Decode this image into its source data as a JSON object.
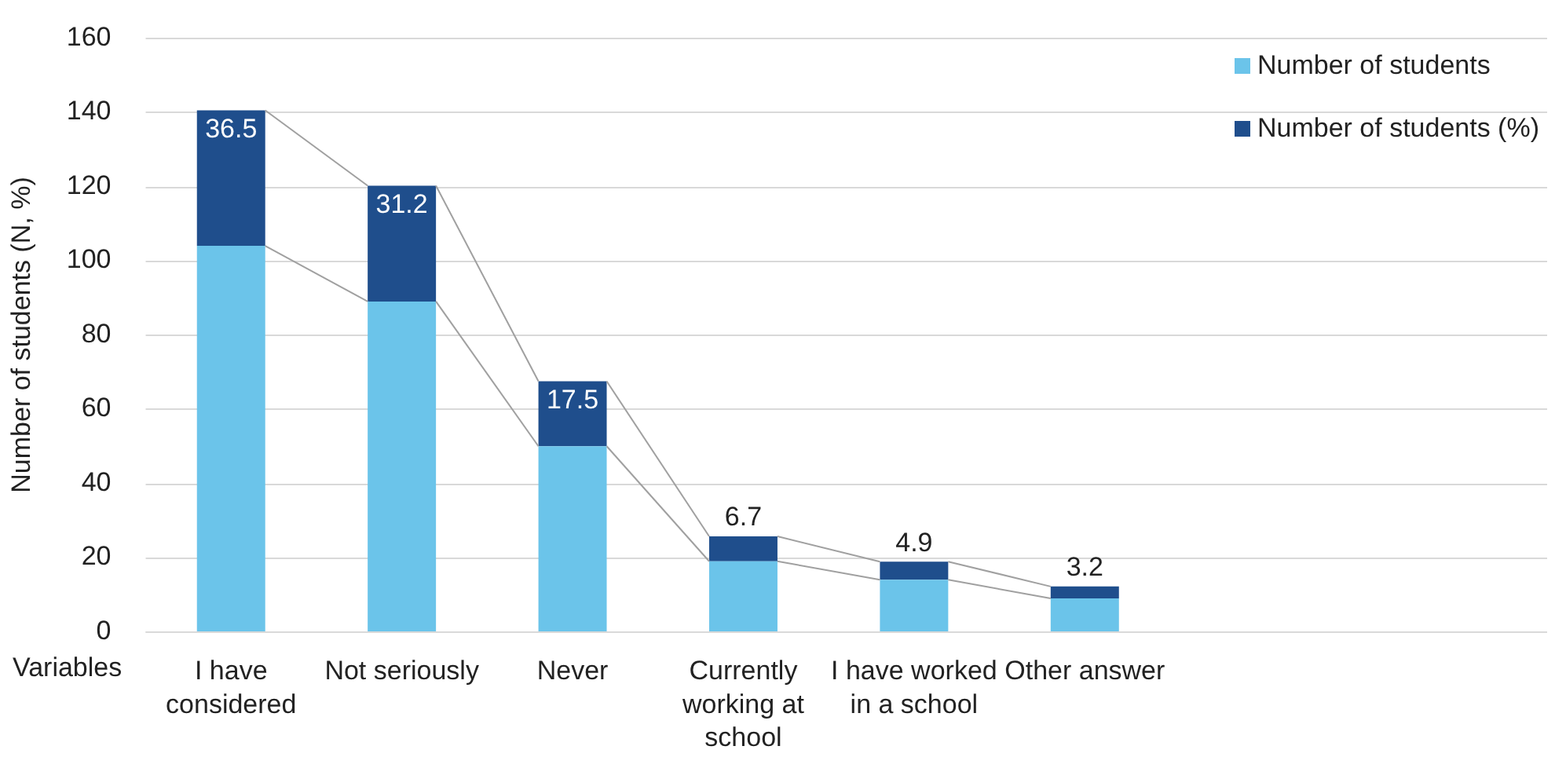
{
  "chart_data": {
    "type": "bar",
    "stacked": true,
    "xlabel": "Variables",
    "ylabel": "Number of students (N, %)",
    "categories": [
      "I have considered",
      "Not seriously",
      "Never",
      "Currently working at school",
      "I have worked in a school",
      "Other answer"
    ],
    "series": [
      {
        "name": "Number of students",
        "color": "#6bc4ea",
        "values": [
          104,
          89,
          50,
          19,
          14,
          9
        ]
      },
      {
        "name": "Number of students (%)",
        "color": "#1f4e8c",
        "values": [
          36.5,
          31.2,
          17.5,
          6.7,
          4.9,
          3.2
        ],
        "value_labels": [
          "36.5",
          "31.2",
          "17.5",
          "6.7",
          "4.9",
          "3.2"
        ]
      }
    ],
    "ylim": [
      0,
      160
    ],
    "yticks": [
      0,
      20,
      40,
      60,
      80,
      100,
      120,
      140,
      160
    ],
    "grid": "y",
    "legend": "top right"
  }
}
